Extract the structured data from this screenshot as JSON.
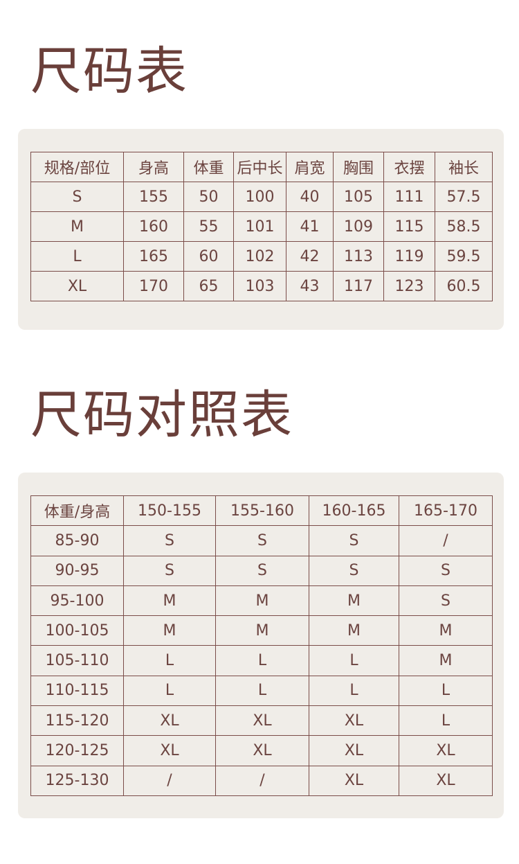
{
  "size_table": {
    "title": "尺码表",
    "headers": [
      "规格/部位",
      "身高",
      "体重",
      "后中长",
      "肩宽",
      "胸围",
      "衣摆",
      "袖长"
    ],
    "rows": [
      [
        "S",
        "155",
        "50",
        "100",
        "40",
        "105",
        "111",
        "57.5"
      ],
      [
        "M",
        "160",
        "55",
        "101",
        "41",
        "109",
        "115",
        "58.5"
      ],
      [
        "L",
        "165",
        "60",
        "102",
        "42",
        "113",
        "119",
        "59.5"
      ],
      [
        "XL",
        "170",
        "65",
        "103",
        "43",
        "117",
        "123",
        "60.5"
      ]
    ]
  },
  "comparison_table": {
    "title": "尺码对照表",
    "headers": [
      "体重/身高",
      "150-155",
      "155-160",
      "160-165",
      "165-170"
    ],
    "rows": [
      [
        "85-90",
        "S",
        "S",
        "S",
        "/"
      ],
      [
        "90-95",
        "S",
        "S",
        "S",
        "S"
      ],
      [
        "95-100",
        "M",
        "M",
        "M",
        "S"
      ],
      [
        "100-105",
        "M",
        "M",
        "M",
        "M"
      ],
      [
        "105-110",
        "L",
        "L",
        "L",
        "M"
      ],
      [
        "110-115",
        "L",
        "L",
        "L",
        "L"
      ],
      [
        "115-120",
        "XL",
        "XL",
        "XL",
        "L"
      ],
      [
        "120-125",
        "XL",
        "XL",
        "XL",
        "XL"
      ],
      [
        "125-130",
        "/",
        "/",
        "XL",
        "XL"
      ]
    ]
  },
  "colors": {
    "text": "#6b4440",
    "card": "#f0ede8",
    "border": "#7a4c48"
  }
}
